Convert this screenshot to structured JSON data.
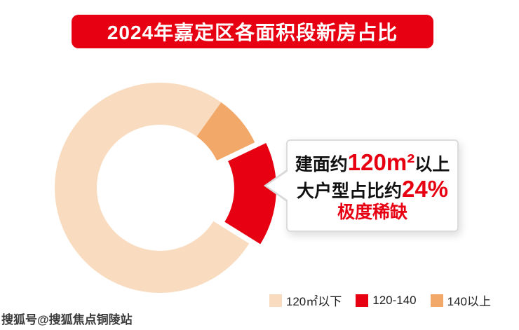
{
  "page": {
    "title": "2024年嘉定区各面积段新房占比",
    "watermark": "搜狐号@搜狐焦点铜陵站",
    "background": "#ffffff"
  },
  "colors": {
    "brand_red": "#e60012",
    "peach": "#f9dcc0",
    "orange": "#f2a869",
    "callout_border": "#dcdcdc",
    "text_dark": "#111111"
  },
  "callout": {
    "line1_prefix": "建面约",
    "line1_value": "120m²",
    "line1_suffix": "以上",
    "line2_prefix": "大户型占比约",
    "line2_value": "24%",
    "line3": "极度稀缺"
  },
  "chart_data": {
    "type": "pie",
    "donut": true,
    "title": "2024年嘉定区各面积段新房占比",
    "unit": "percent",
    "segments": [
      {
        "label": "120㎡以下",
        "value": 76,
        "color": "#f9dcc0",
        "exploded": false
      },
      {
        "label": "140以上",
        "value": 8,
        "color": "#f2a869",
        "exploded": false
      },
      {
        "label": "120-140",
        "value": 16,
        "color": "#e60012",
        "exploded": true
      }
    ],
    "start_angle_deg": 122,
    "legend": [
      {
        "label": "120㎡以下",
        "color": "#f9dcc0"
      },
      {
        "label": "120-140",
        "color": "#e60012"
      },
      {
        "label": "140以上",
        "color": "#f2a869"
      }
    ],
    "legend_position": "bottom-right",
    "annotation": "建面约120m²以上 大户型占比约24% 极度稀缺"
  }
}
